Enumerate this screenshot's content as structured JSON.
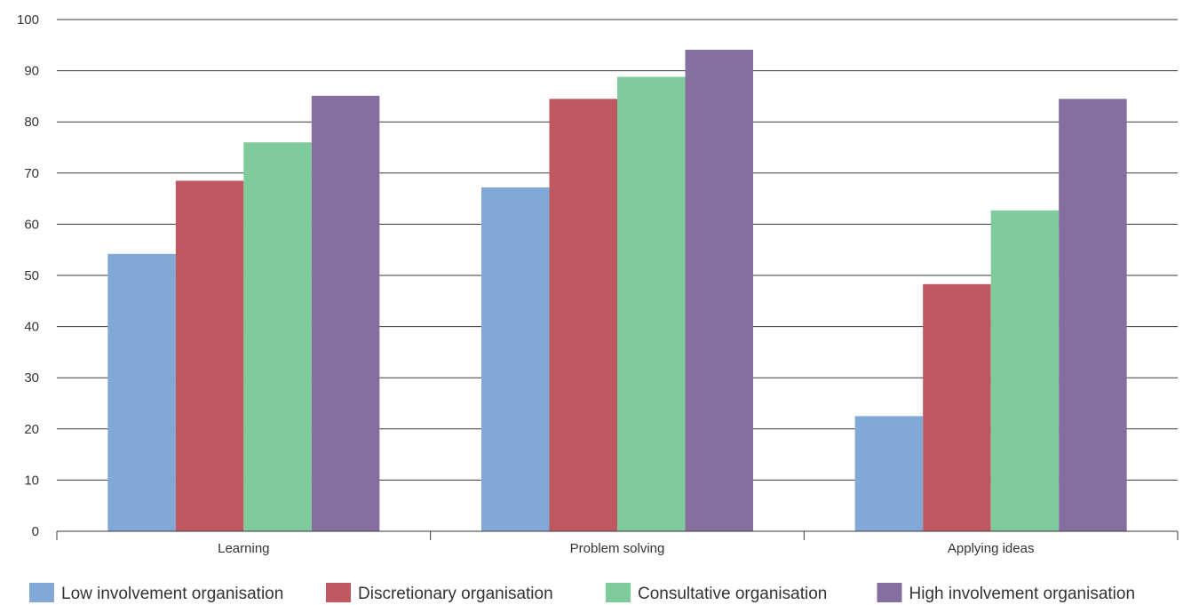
{
  "chart_data": {
    "type": "bar",
    "title": "",
    "xlabel": "",
    "ylabel": "",
    "categories": [
      "Learning",
      "Problem solving",
      "Applying ideas"
    ],
    "ylim": [
      0,
      100
    ],
    "yticks": [
      0,
      10,
      20,
      30,
      40,
      50,
      60,
      70,
      80,
      90,
      100
    ],
    "grid": true,
    "legend_position": "bottom",
    "series": [
      {
        "name": "Low involvement organisation",
        "color": "#81a8d7",
        "values": [
          54.2,
          67.2,
          22.5
        ]
      },
      {
        "name": "Discretionary organisation",
        "color": "#c05862",
        "values": [
          68.5,
          84.5,
          48.3
        ]
      },
      {
        "name": "Consultative organisation",
        "color": "#80cb9b",
        "values": [
          76.0,
          88.8,
          62.7
        ]
      },
      {
        "name": "High involvement organisation",
        "color": "#856fa1",
        "values": [
          85.1,
          94.1,
          84.5
        ]
      }
    ]
  }
}
